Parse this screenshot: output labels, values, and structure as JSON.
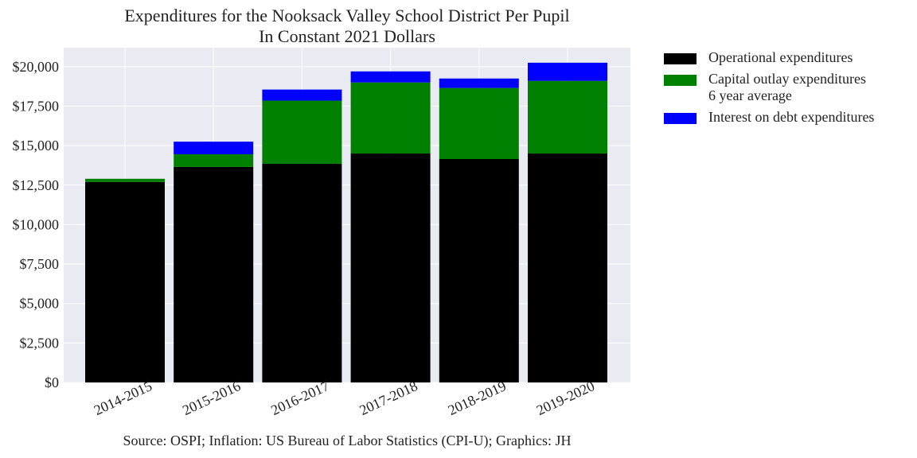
{
  "chart_data": {
    "type": "bar",
    "stacked": true,
    "title": "Expenditures for the Nooksack Valley School District Per Pupil",
    "subtitle": "In Constant 2021 Dollars",
    "categories": [
      "2014-2015",
      "2015-2016",
      "2016-2017",
      "2017-2018",
      "2018-2019",
      "2019-2020"
    ],
    "series": [
      {
        "name": "Operational expenditures",
        "color": "#000000",
        "values": [
          12700,
          13650,
          13850,
          14500,
          14150,
          14500
        ]
      },
      {
        "name": "Capital outlay expenditures\n6 year average",
        "color": "#008000",
        "values": [
          200,
          800,
          4000,
          4500,
          4500,
          4600
        ]
      },
      {
        "name": "Interest on debt expenditures",
        "color": "#0000ff",
        "values": [
          0,
          800,
          700,
          700,
          600,
          1150
        ]
      }
    ],
    "yticks": [
      "$0",
      "$2,500",
      "$5,000",
      "$7,500",
      "$10,000",
      "$12,500",
      "$15,000",
      "$17,500",
      "$20,000"
    ],
    "ylim": [
      0,
      21200
    ],
    "grid": true,
    "legend_position": "outside-right",
    "source": "Source: OSPI; Inflation: US Bureau of Labor Statistics (CPI-U); Graphics: JH",
    "colors": {
      "plot_background": "#eaeaf2",
      "grid": "#ffffff"
    }
  }
}
